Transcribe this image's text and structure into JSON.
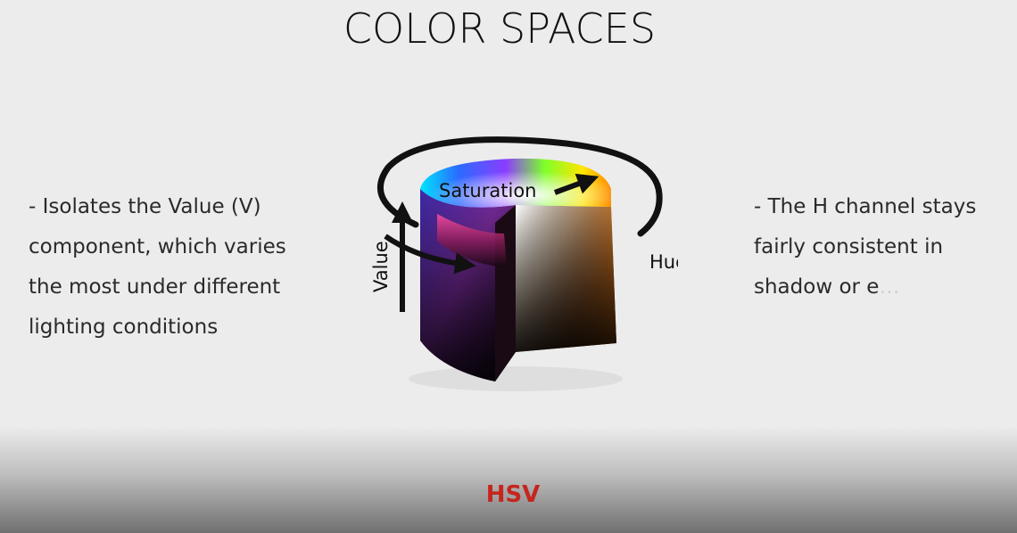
{
  "slide": {
    "title": "COLOR SPACES",
    "left_note": "- Isolates the Value (V)\ncomponent, which varies\nthe most under different\nlighting conditions",
    "right_note": "- The H channel stays\nfairly consistent in\nshadow or e",
    "right_note_faded": "…",
    "caption": "HSV"
  },
  "diagram": {
    "labels": {
      "saturation": "Saturation",
      "value": "Value",
      "hue": "Hue"
    }
  },
  "colors": {
    "caption": "#c4261d",
    "background": "#ececec"
  }
}
